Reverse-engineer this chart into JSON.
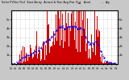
{
  "title": "Solar PV/Inv Perf  East Array  Actual & Run Avg Pwr Out",
  "bg_color": "#c8c8c8",
  "plot_bg": "#ffffff",
  "bar_color": "#cc0000",
  "line_color": "#0000ff",
  "grid_color": "#aaaaaa",
  "ymax": 6000,
  "num_bars": 200,
  "seed": 7
}
